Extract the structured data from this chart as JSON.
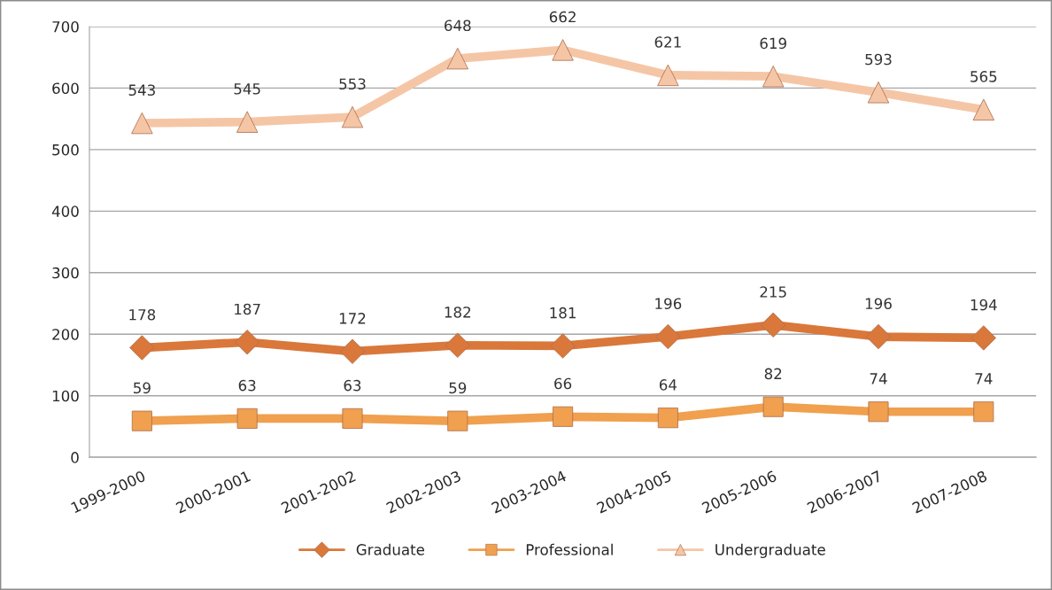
{
  "chart_data": {
    "type": "line",
    "categories": [
      "1999-2000",
      "2000-2001",
      "2001-2002",
      "2002-2003",
      "2003-2004",
      "2004-2005",
      "2005-2006",
      "2006-2007",
      "2007-2008"
    ],
    "series": [
      {
        "name": "Graduate",
        "color": "#d9783a",
        "marker": "diamond",
        "values": [
          178,
          187,
          172,
          182,
          181,
          196,
          215,
          196,
          194
        ]
      },
      {
        "name": "Professional",
        "color": "#f0a04e",
        "marker": "square",
        "values": [
          59,
          63,
          63,
          59,
          66,
          64,
          82,
          74,
          74
        ]
      },
      {
        "name": "Undergraduate",
        "color": "#f5c6a6",
        "marker": "triangle",
        "values": [
          543,
          545,
          553,
          648,
          662,
          621,
          619,
          593,
          565
        ]
      }
    ],
    "ylim": [
      0,
      700
    ],
    "yticks": [
      0,
      100,
      200,
      300,
      400,
      500,
      600,
      700
    ],
    "grid": "y",
    "legend": "bottom",
    "data_labels": true
  }
}
